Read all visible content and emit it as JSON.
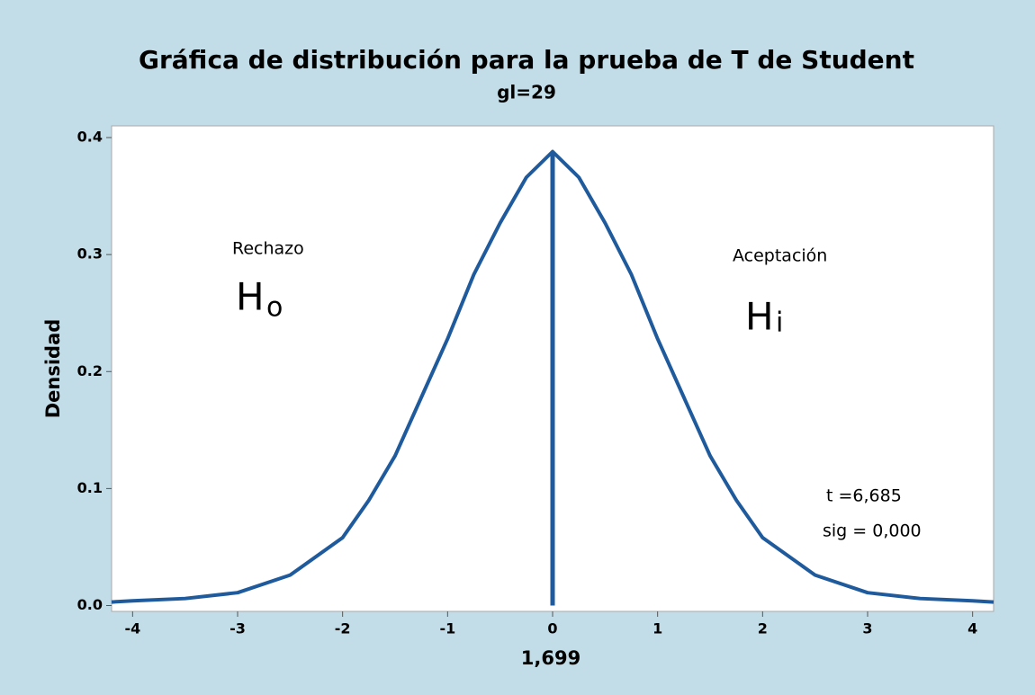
{
  "chart_data": {
    "type": "line",
    "title": "Gráfica de distribución para la prueba de T de Student",
    "subtitle": "gl=29",
    "xlabel": "1,699",
    "ylabel": "Densidad",
    "x": [
      -4.2,
      -4,
      -3.5,
      -3,
      -2.5,
      -2,
      -1.75,
      -1.5,
      -1.25,
      -1,
      -0.75,
      -0.5,
      -0.25,
      0,
      0.25,
      0.5,
      0.75,
      1,
      1.25,
      1.5,
      1.75,
      2,
      2.5,
      3,
      3.5,
      4,
      4.2
    ],
    "series": [
      {
        "color": "#1f5b9c",
        "values": [
          0.003,
          0.004,
          0.006,
          0.011,
          0.026,
          0.058,
          0.09,
          0.128,
          0.178,
          0.228,
          0.283,
          0.327,
          0.366,
          0.388,
          0.366,
          0.327,
          0.283,
          0.228,
          0.178,
          0.128,
          0.09,
          0.058,
          0.026,
          0.011,
          0.006,
          0.004,
          0.003
        ]
      }
    ],
    "vline": {
      "x": 0,
      "y": 0.388
    },
    "xlim": [
      -4.2,
      4.2
    ],
    "ylim": [
      -0.005,
      0.41
    ],
    "xticks": [
      -4,
      -3,
      -2,
      -1,
      0,
      1,
      2,
      3,
      4
    ],
    "yticks": [
      {
        "value": 0,
        "label": "0.0"
      },
      0.1,
      0.2,
      0.3,
      0.4
    ],
    "annotations": {
      "rechazo": "Rechazo",
      "h0_main": "H",
      "h0_sub": "o",
      "aceptacion": "Aceptación",
      "h1_main": "H",
      "h1_sub": "i",
      "t": "t =6,685",
      "sig": "sig = 0,000"
    }
  }
}
